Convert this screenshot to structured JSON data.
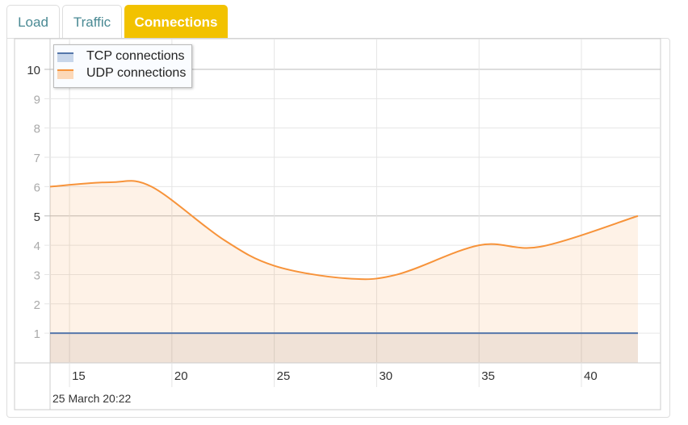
{
  "tabs": [
    {
      "label": "Load"
    },
    {
      "label": "Traffic"
    },
    {
      "label": "Connections",
      "active": true
    }
  ],
  "colors": {
    "tcp": "#5577aa",
    "udp": "#f7933a",
    "active_tab": "#f2c200"
  },
  "chart_data": {
    "type": "area",
    "xlabel": "25 March 20:22",
    "xlim": [
      14.05,
      42.76
    ],
    "ylim": [
      0,
      10.5
    ],
    "x_ticks": [
      "15",
      "20",
      "25",
      "30",
      "35",
      "40"
    ],
    "y_ticks": [
      "1",
      "2",
      "3",
      "4",
      "5",
      "6",
      "7",
      "8",
      "9",
      "10"
    ],
    "grid": true,
    "legend": "top-left",
    "series": [
      {
        "name": "TCP connections",
        "x": [
          14.05,
          20,
          25,
          30,
          35,
          40,
          42.76
        ],
        "y": [
          1,
          1,
          1,
          1,
          1,
          1,
          1
        ]
      },
      {
        "name": "UDP connections",
        "x": [
          14.05,
          17,
          19,
          22.5,
          25,
          28.5,
          31,
          35,
          38,
          42.76
        ],
        "y": [
          6.0,
          6.15,
          6.0,
          4.2,
          3.3,
          2.87,
          3.0,
          4.0,
          3.95,
          5.0
        ]
      }
    ]
  }
}
